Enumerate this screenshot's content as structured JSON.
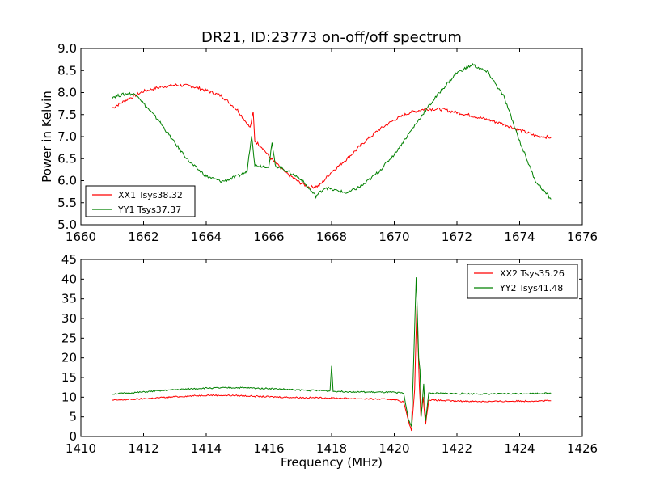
{
  "title": "DR21, ID:23773 on-off/off spectrum",
  "colors": {
    "xx": "#ff0000",
    "yy": "#008000"
  },
  "chart_data": [
    {
      "type": "line",
      "xlim": [
        1660,
        1676
      ],
      "ylim": [
        5.0,
        9.0
      ],
      "xticks": [
        "1660",
        "1662",
        "1664",
        "1666",
        "1668",
        "1670",
        "1672",
        "1674",
        "1676"
      ],
      "yticks": [
        "5.0",
        "5.5",
        "6.0",
        "6.5",
        "7.0",
        "7.5",
        "8.0",
        "8.5",
        "9.0"
      ],
      "ylabel": "Power in Kelvin",
      "xlabel": "",
      "legend_position": "lower-left",
      "grid": false,
      "series": [
        {
          "name": "XX1 Tsys38.32",
          "color": "#ff0000",
          "points": [
            [
              1661.0,
              7.65
            ],
            [
              1661.5,
              7.85
            ],
            [
              1662.0,
              8.03
            ],
            [
              1662.5,
              8.12
            ],
            [
              1663.0,
              8.17
            ],
            [
              1663.5,
              8.15
            ],
            [
              1664.0,
              8.05
            ],
            [
              1664.5,
              7.92
            ],
            [
              1665.0,
              7.6
            ],
            [
              1665.4,
              7.2
            ],
            [
              1665.5,
              7.55
            ],
            [
              1665.55,
              6.9
            ],
            [
              1665.8,
              6.75
            ],
            [
              1666.0,
              6.55
            ],
            [
              1666.5,
              6.2
            ],
            [
              1667.0,
              5.95
            ],
            [
              1667.3,
              5.85
            ],
            [
              1667.6,
              5.88
            ],
            [
              1668.0,
              6.2
            ],
            [
              1668.5,
              6.5
            ],
            [
              1669.0,
              6.85
            ],
            [
              1669.5,
              7.15
            ],
            [
              1670.0,
              7.38
            ],
            [
              1670.5,
              7.55
            ],
            [
              1671.0,
              7.63
            ],
            [
              1671.5,
              7.62
            ],
            [
              1672.0,
              7.55
            ],
            [
              1672.5,
              7.47
            ],
            [
              1673.0,
              7.38
            ],
            [
              1673.5,
              7.28
            ],
            [
              1674.0,
              7.15
            ],
            [
              1674.5,
              7.02
            ],
            [
              1675.0,
              6.98
            ]
          ]
        },
        {
          "name": "YY1 Tsys37.37",
          "color": "#008000",
          "points": [
            [
              1661.0,
              7.9
            ],
            [
              1661.5,
              7.98
            ],
            [
              1661.8,
              7.95
            ],
            [
              1662.0,
              7.75
            ],
            [
              1662.5,
              7.35
            ],
            [
              1663.0,
              6.85
            ],
            [
              1663.5,
              6.4
            ],
            [
              1664.0,
              6.1
            ],
            [
              1664.5,
              5.98
            ],
            [
              1665.0,
              6.1
            ],
            [
              1665.3,
              6.2
            ],
            [
              1665.45,
              7.05
            ],
            [
              1665.55,
              6.35
            ],
            [
              1666.0,
              6.32
            ],
            [
              1666.1,
              6.85
            ],
            [
              1666.2,
              6.35
            ],
            [
              1666.5,
              6.25
            ],
            [
              1667.0,
              6.05
            ],
            [
              1667.4,
              5.72
            ],
            [
              1667.5,
              5.65
            ],
            [
              1667.8,
              5.85
            ],
            [
              1668.0,
              5.8
            ],
            [
              1668.5,
              5.72
            ],
            [
              1669.0,
              5.9
            ],
            [
              1669.5,
              6.2
            ],
            [
              1670.0,
              6.6
            ],
            [
              1670.5,
              7.1
            ],
            [
              1671.0,
              7.6
            ],
            [
              1671.5,
              8.05
            ],
            [
              1672.0,
              8.45
            ],
            [
              1672.5,
              8.63
            ],
            [
              1673.0,
              8.45
            ],
            [
              1673.5,
              7.9
            ],
            [
              1674.0,
              6.9
            ],
            [
              1674.5,
              6.0
            ],
            [
              1675.0,
              5.58
            ]
          ]
        }
      ]
    },
    {
      "type": "line",
      "xlim": [
        1410,
        1426
      ],
      "ylim": [
        0,
        45
      ],
      "xticks": [
        "1410",
        "1412",
        "1414",
        "1416",
        "1418",
        "1420",
        "1422",
        "1424",
        "1426"
      ],
      "yticks": [
        "0",
        "5",
        "10",
        "15",
        "20",
        "25",
        "30",
        "35",
        "40",
        "45"
      ],
      "xlabel": "Frequency (MHz)",
      "ylabel": "",
      "legend_position": "upper-right",
      "grid": false,
      "series": [
        {
          "name": "XX2 Tsys35.26",
          "color": "#ff0000",
          "points": [
            [
              1411.0,
              9.2
            ],
            [
              1412.0,
              9.6
            ],
            [
              1413.0,
              10.1
            ],
            [
              1414.0,
              10.5
            ],
            [
              1415.0,
              10.4
            ],
            [
              1416.0,
              10.1
            ],
            [
              1417.0,
              9.9
            ],
            [
              1418.0,
              9.8
            ],
            [
              1419.0,
              9.6
            ],
            [
              1420.0,
              9.4
            ],
            [
              1420.3,
              8.8
            ],
            [
              1420.45,
              4.0
            ],
            [
              1420.55,
              1.5
            ],
            [
              1420.65,
              12.0
            ],
            [
              1420.72,
              33.0
            ],
            [
              1420.8,
              13.0
            ],
            [
              1420.85,
              5.0
            ],
            [
              1420.92,
              10.0
            ],
            [
              1421.0,
              3.0
            ],
            [
              1421.1,
              9.3
            ],
            [
              1422.0,
              9.0
            ],
            [
              1423.0,
              8.9
            ],
            [
              1424.0,
              9.0
            ],
            [
              1425.0,
              9.1
            ]
          ]
        },
        {
          "name": "YY2 Tsys41.48",
          "color": "#008000",
          "points": [
            [
              1411.0,
              10.8
            ],
            [
              1412.0,
              11.3
            ],
            [
              1413.0,
              11.9
            ],
            [
              1414.0,
              12.3
            ],
            [
              1415.0,
              12.4
            ],
            [
              1416.0,
              12.2
            ],
            [
              1417.0,
              11.8
            ],
            [
              1417.95,
              11.6
            ],
            [
              1418.0,
              18.0
            ],
            [
              1418.05,
              11.5
            ],
            [
              1419.0,
              11.3
            ],
            [
              1420.0,
              11.2
            ],
            [
              1420.3,
              11.0
            ],
            [
              1420.45,
              4.5
            ],
            [
              1420.55,
              2.5
            ],
            [
              1420.6,
              14.0
            ],
            [
              1420.7,
              40.5
            ],
            [
              1420.78,
              20.0
            ],
            [
              1420.82,
              17.0
            ],
            [
              1420.86,
              5.0
            ],
            [
              1420.94,
              13.5
            ],
            [
              1421.0,
              4.0
            ],
            [
              1421.1,
              11.0
            ],
            [
              1422.0,
              10.9
            ],
            [
              1423.0,
              10.8
            ],
            [
              1424.0,
              10.9
            ],
            [
              1425.0,
              11.0
            ]
          ]
        }
      ]
    }
  ]
}
